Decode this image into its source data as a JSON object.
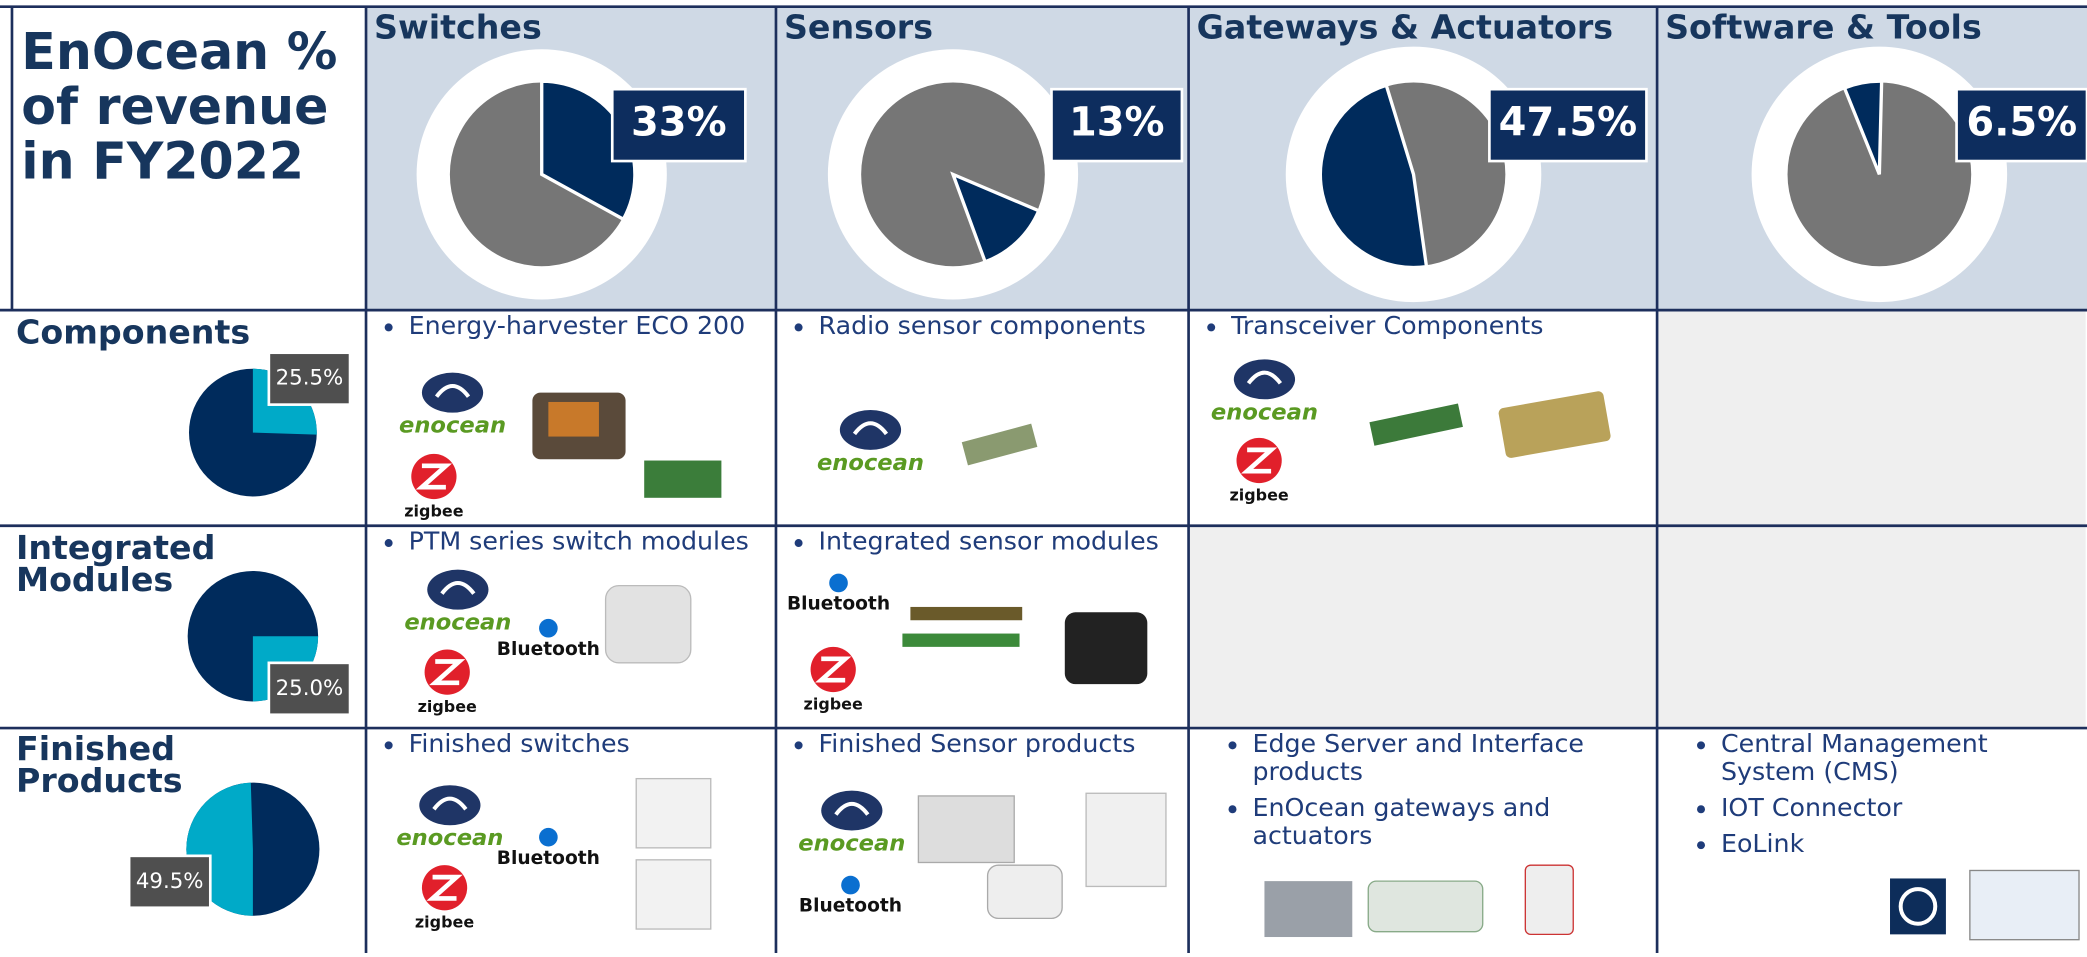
{
  "title": [
    "EnOcean %",
    "of revenue",
    "in FY2022"
  ],
  "chart_data": [
    {
      "type": "pie",
      "title": "Switches",
      "values": [
        33
      ],
      "value_labels": [
        "33%"
      ],
      "colors": [
        "#002b5c",
        "#767676"
      ]
    },
    {
      "type": "pie",
      "title": "Sensors",
      "values": [
        13
      ],
      "value_labels": [
        "13%"
      ],
      "colors": [
        "#002b5c",
        "#767676"
      ]
    },
    {
      "type": "pie",
      "title": "Gateways & Actuators",
      "values": [
        47.5
      ],
      "value_labels": [
        "47.5%"
      ],
      "colors": [
        "#002b5c",
        "#767676"
      ]
    },
    {
      "type": "pie",
      "title": "Software & Tools",
      "values": [
        6.5
      ],
      "value_labels": [
        "6.5%"
      ],
      "colors": [
        "#002b5c",
        "#767676"
      ]
    },
    {
      "type": "pie",
      "title": "Components",
      "values": [
        25.5
      ],
      "value_labels": [
        "25.5%"
      ],
      "colors": [
        "#00aac8",
        "#002b5c"
      ]
    },
    {
      "type": "pie",
      "title": "Integrated Modules",
      "values": [
        25.0
      ],
      "value_labels": [
        "25.0%"
      ],
      "colors": [
        "#00aac8",
        "#002b5c"
      ]
    },
    {
      "type": "pie",
      "title": "Finished Products",
      "values": [
        49.5
      ],
      "value_labels": [
        "49.5%"
      ],
      "colors": [
        "#00aac8",
        "#002b5c"
      ]
    }
  ],
  "cells": [
    [
      {
        "bullets": [
          "Energy-harvester ECO 200"
        ],
        "logos": [
          "enocean",
          "zigbee"
        ]
      },
      {
        "bullets": [
          "Radio sensor components"
        ],
        "logos": [
          "enocean"
        ]
      },
      {
        "bullets": [
          "Transceiver Components"
        ],
        "logos": [
          "enocean",
          "zigbee"
        ]
      },
      {
        "bullets": [],
        "logos": []
      }
    ],
    [
      {
        "bullets": [
          "PTM series switch modules"
        ],
        "logos": [
          "enocean",
          "zigbee",
          "Bluetooth"
        ]
      },
      {
        "bullets": [
          "Integrated sensor modules"
        ],
        "logos": [
          "Bluetooth",
          "zigbee"
        ]
      },
      {
        "bullets": [],
        "logos": []
      },
      {
        "bullets": [],
        "logos": []
      }
    ],
    [
      {
        "bullets": [
          "Finished switches"
        ],
        "logos": [
          "enocean",
          "zigbee",
          "Bluetooth"
        ]
      },
      {
        "bullets": [
          "Finished Sensor products"
        ],
        "logos": [
          "enocean",
          "Bluetooth"
        ]
      },
      {
        "bullets": [
          "Edge Server and Interface products",
          "EnOcean gateways and actuators"
        ],
        "logos": []
      },
      {
        "bullets": [
          "Central Management System (CMS)",
          "IOT Connector",
          "EoLink"
        ],
        "logos": []
      }
    ]
  ]
}
